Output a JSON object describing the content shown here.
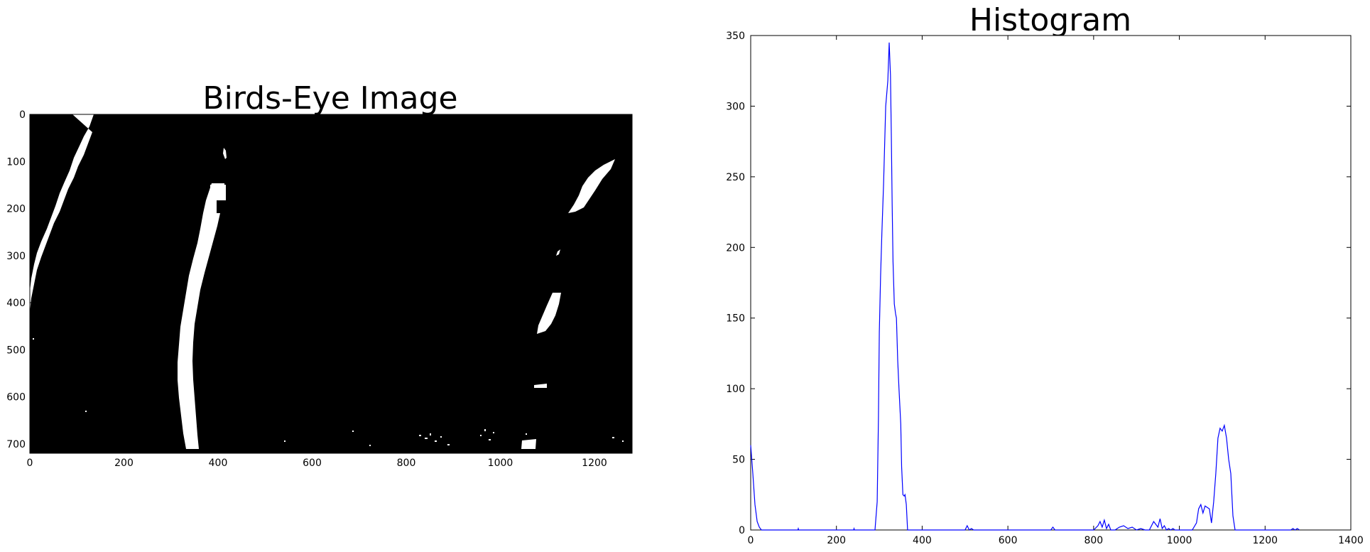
{
  "chart_data": [
    {
      "type": "image",
      "title": "Birds-Eye Image",
      "xlim": [
        0,
        1280
      ],
      "ylim": [
        720,
        0
      ],
      "x_ticks": [
        0,
        200,
        400,
        600,
        800,
        1000,
        1200
      ],
      "y_ticks": [
        0,
        100,
        200,
        300,
        400,
        500,
        600,
        700
      ],
      "background_color": "#000000",
      "foreground_color": "#ffffff"
    },
    {
      "type": "line",
      "title": "Histogram",
      "xlim": [
        0,
        1400
      ],
      "ylim": [
        0,
        350
      ],
      "x_ticks": [
        0,
        200,
        400,
        600,
        800,
        1000,
        1200,
        1400
      ],
      "y_ticks": [
        0,
        50,
        100,
        150,
        200,
        250,
        300,
        350
      ],
      "line_color": "#0000ff",
      "series": [
        {
          "x": [
            0,
            5,
            10,
            15,
            20,
            25,
            30,
            60,
            110,
            111,
            112,
            240,
            241,
            242,
            290,
            295,
            298,
            300,
            303,
            306,
            310,
            315,
            320,
            323,
            326,
            328,
            330,
            332,
            335,
            338,
            340,
            343,
            346,
            350,
            352,
            355,
            358,
            360,
            363,
            366,
            370,
            375,
            378,
            380,
            450,
            500,
            505,
            510,
            515,
            520,
            690,
            700,
            705,
            710,
            780,
            790,
            800,
            810,
            815,
            820,
            825,
            830,
            835,
            840,
            845,
            850,
            860,
            870,
            880,
            890,
            900,
            910,
            920,
            930,
            940,
            950,
            955,
            960,
            965,
            970,
            975,
            980,
            985,
            990,
            1000,
            1030,
            1040,
            1045,
            1050,
            1055,
            1060,
            1065,
            1070,
            1075,
            1080,
            1085,
            1090,
            1095,
            1100,
            1105,
            1110,
            1115,
            1120,
            1125,
            1130,
            1135,
            1140,
            1260,
            1265,
            1270,
            1275,
            1280
          ],
          "y": [
            60,
            40,
            18,
            6,
            2,
            0,
            0,
            0,
            0,
            1,
            0,
            0,
            1,
            0,
            0,
            20,
            80,
            140,
            180,
            210,
            245,
            300,
            318,
            345,
            322,
            280,
            230,
            190,
            160,
            153,
            150,
            120,
            100,
            75,
            45,
            25,
            24,
            25,
            18,
            0,
            0,
            0,
            0,
            0,
            0,
            0,
            3,
            0,
            1,
            0,
            0,
            0,
            2,
            0,
            0,
            0,
            0,
            3,
            6,
            2,
            7,
            1,
            4,
            0,
            0,
            0,
            2,
            3,
            1,
            2,
            0,
            1,
            0,
            0,
            6,
            2,
            8,
            1,
            3,
            0,
            1,
            0,
            1,
            0,
            0,
            0,
            5,
            15,
            18,
            12,
            17,
            16,
            15,
            5,
            20,
            40,
            65,
            72,
            70,
            74,
            65,
            50,
            40,
            10,
            0,
            0,
            0,
            0,
            1,
            0,
            1,
            0
          ]
        }
      ]
    }
  ]
}
